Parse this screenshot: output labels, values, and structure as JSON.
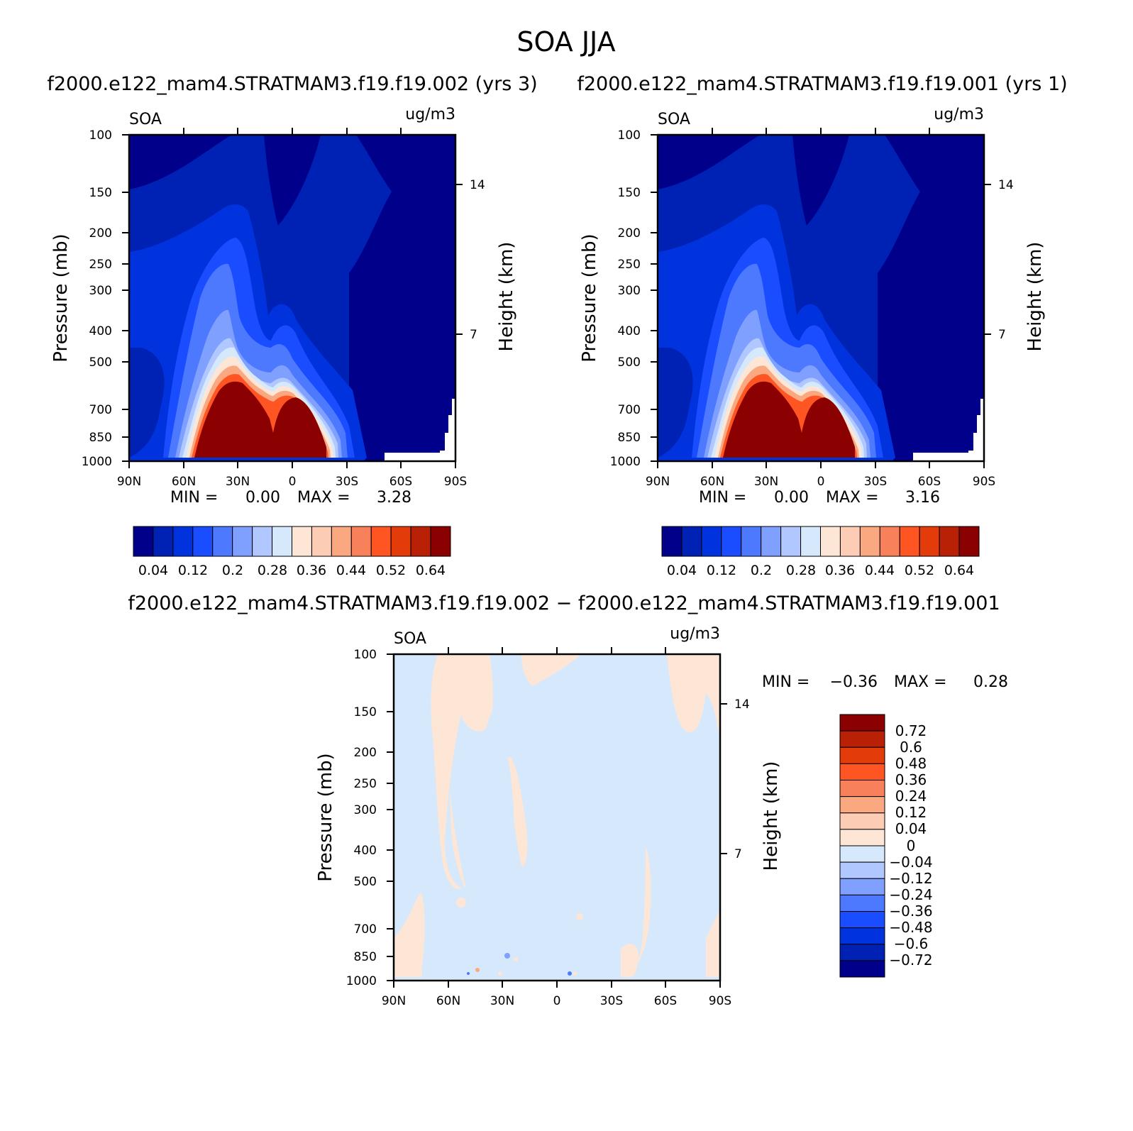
{
  "figure": {
    "title": "SOA JJA",
    "panel1_title": "f2000.e122_mam4.STRATMAM3.f19.f19.002 (yrs 3)",
    "panel2_title": "f2000.e122_mam4.STRATMAM3.f19.f19.001 (yrs 1)",
    "diff_title": "f2000.e122_mam4.STRATMAM3.f19.f19.002 − f2000.e122_mam4.STRATMAM3.f19.f19.001"
  },
  "colors": {
    "seq": [
      "#00008b",
      "#0022b4",
      "#0033dd",
      "#1a4dff",
      "#4d79ff",
      "#7fa0ff",
      "#b0c8ff",
      "#d6e8fb",
      "#fde6d6",
      "#fcccb4",
      "#f9a880",
      "#f8805a",
      "#fe5522",
      "#e33c0a",
      "#b82106",
      "#8b0000"
    ]
  },
  "chart_data": [
    {
      "type": "contour",
      "name": "panel1",
      "left_label": "SOA",
      "right_label": "ug/m3",
      "ylabel": "Pressure (mb)",
      "ylabel_right": "Height (km)",
      "x_ticks": [
        "90N",
        "60N",
        "30N",
        "0",
        "30S",
        "60S",
        "90S"
      ],
      "y_ticks": [
        "100",
        "150",
        "200",
        "250",
        "300",
        "400",
        "500",
        "700",
        "850",
        "1000"
      ],
      "height_ticks": [
        "14",
        "7"
      ],
      "min_label": "MIN =",
      "min": "0.00",
      "max_label": "MAX =",
      "max": "3.28",
      "colorbar_labels": [
        "0.04",
        "0.12",
        "0.2",
        "0.28",
        "0.36",
        "0.44",
        "0.52",
        "0.64"
      ]
    },
    {
      "type": "contour",
      "name": "panel2",
      "left_label": "SOA",
      "right_label": "ug/m3",
      "ylabel": "Pressure (mb)",
      "ylabel_right": "Height (km)",
      "x_ticks": [
        "90N",
        "60N",
        "30N",
        "0",
        "30S",
        "60S",
        "90S"
      ],
      "y_ticks": [
        "100",
        "150",
        "200",
        "250",
        "300",
        "400",
        "500",
        "700",
        "850",
        "1000"
      ],
      "height_ticks": [
        "14",
        "7"
      ],
      "min_label": "MIN =",
      "min": "0.00",
      "max_label": "MAX =",
      "max": "3.16",
      "colorbar_labels": [
        "0.04",
        "0.12",
        "0.2",
        "0.28",
        "0.36",
        "0.44",
        "0.52",
        "0.64"
      ]
    },
    {
      "type": "contour",
      "name": "difference",
      "left_label": "SOA",
      "right_label": "ug/m3",
      "ylabel": "Pressure (mb)",
      "ylabel_right": "Height (km)",
      "x_ticks": [
        "90N",
        "60N",
        "30N",
        "0",
        "30S",
        "60S",
        "90S"
      ],
      "y_ticks": [
        "100",
        "150",
        "200",
        "250",
        "300",
        "400",
        "500",
        "700",
        "850",
        "1000"
      ],
      "height_ticks": [
        "14",
        "7"
      ],
      "min_label": "MIN =",
      "min": "−0.36",
      "max_label": "MAX =",
      "max": "0.28",
      "colorbar_labels": [
        "0.72",
        "0.6",
        "0.48",
        "0.36",
        "0.24",
        "0.12",
        "0.04",
        "0",
        "−0.04",
        "−0.12",
        "−0.24",
        "−0.36",
        "−0.48",
        "−0.6",
        "−0.72"
      ]
    }
  ]
}
